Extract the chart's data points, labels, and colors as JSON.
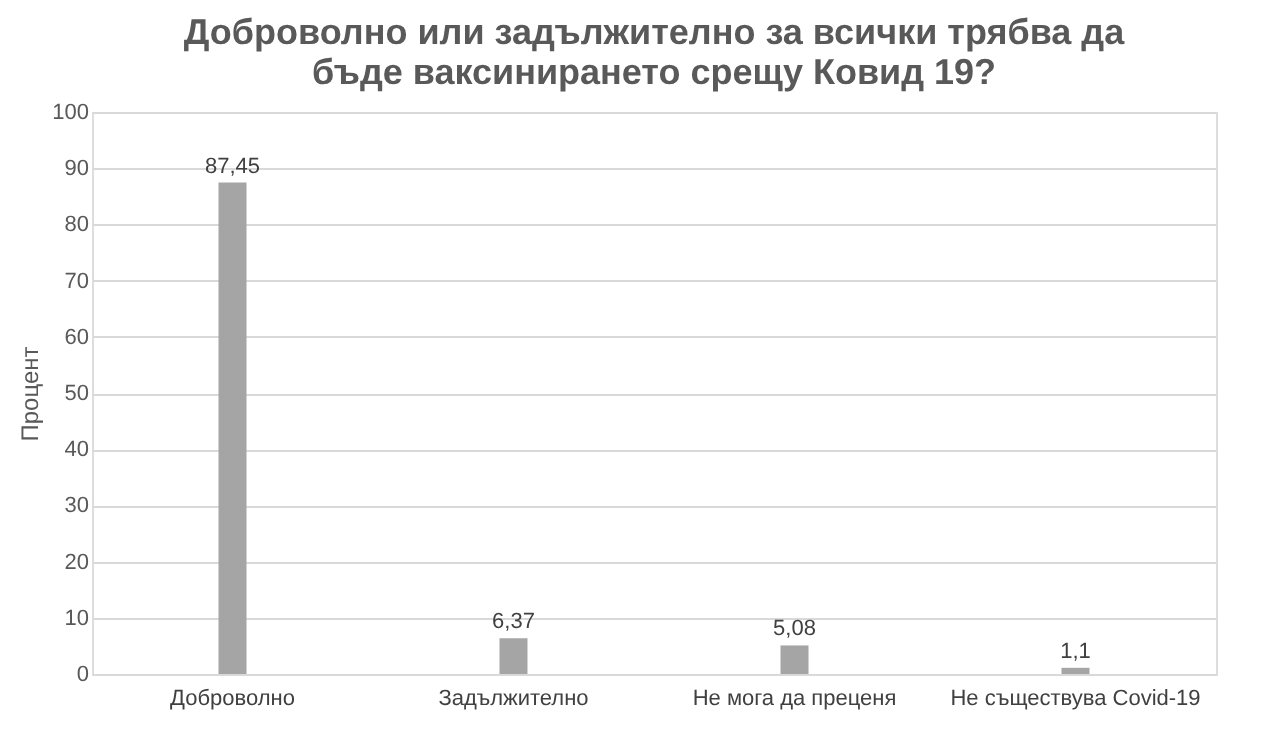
{
  "chart_data": {
    "type": "bar",
    "title": [
      "Доброволно или задължително за всички трябва да",
      "бъде ваксинирането срещу Ковид 19?"
    ],
    "ylabel": "Процент",
    "categories": [
      "Доброволно",
      "Задължително",
      "Не мога да преценя",
      "Не съществува Covid-19"
    ],
    "values": [
      87.45,
      6.37,
      5.08,
      1.1
    ],
    "value_labels": [
      "87,45",
      "6,37",
      "5,08",
      "1,1"
    ],
    "color": "#a5a5a5",
    "ylim": [
      0,
      100
    ],
    "yticks": [
      0,
      10,
      20,
      30,
      40,
      50,
      60,
      70,
      80,
      90,
      100
    ],
    "grid": "y",
    "legend": false
  }
}
